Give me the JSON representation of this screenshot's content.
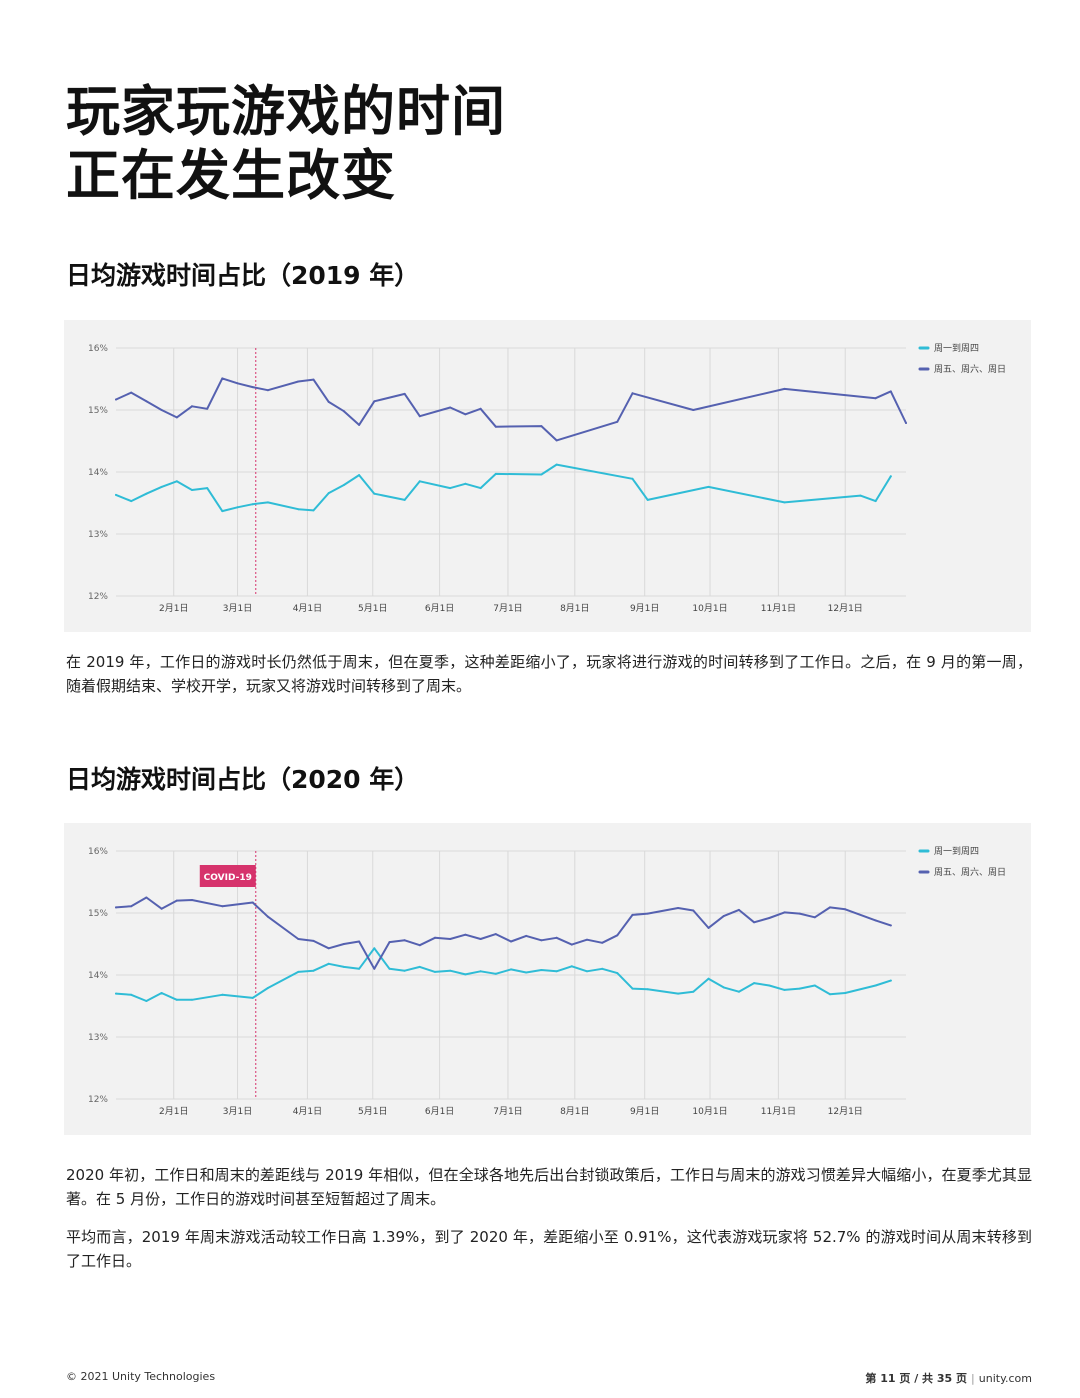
{
  "page": {
    "title_line1": "玩家玩游戏的时间",
    "title_line2": "正在发生改变",
    "section1_title": "日均游戏时间占比（2019 年）",
    "section1_text": "在 2019 年，工作日的游戏时长仍然低于周末，但在夏季，这种差距缩小了，玩家将进行游戏的时间转移到了工作日。之后，在 9 月的第一周，随着假期结束、学校开学，玩家又将游戏时间转移到了周末。",
    "section2_title": "日均游戏时间占比（2020 年）",
    "section2_text1": "2020 年初，工作日和周末的差距线与 2019 年相似，但在全球各地先后出台封锁政策后，工作日与周末的游戏习惯差异大幅缩小，在夏季尤其显著。在 5 月份，工作日的游戏时间甚至短暂超过了周末。",
    "section2_text2": "平均而言，2019 年周末游戏活动较工作日高 1.39%，到了 2020 年，差距缩小至 0.91%，这代表游戏玩家将 52.7% 的游戏时间从周末转移到了工作日。"
  },
  "footer": {
    "copyright": "© 2021 Unity Technologies",
    "page_number": "第 11 页 / 共 35 页",
    "site": "unity.com"
  },
  "colors": {
    "weekday": "#2fbcd6",
    "weekend": "#5561b0",
    "marker": "#d6336c",
    "background": "#f2f2f2",
    "grid": "#d9d9d9"
  },
  "chart_data": [
    {
      "type": "line",
      "title": "日均游戏时间占比（2019 年）",
      "xlabel": "",
      "ylabel": "",
      "x_unit": "week_index",
      "x_range": [
        0,
        52
      ],
      "ylim": [
        12,
        16
      ],
      "yticks": [
        "12%",
        "13%",
        "14%",
        "15%",
        "16%"
      ],
      "yticks_values": [
        12,
        13,
        14,
        15,
        16
      ],
      "month_ticks": [
        {
          "label": "2月1日",
          "x": 3.8
        },
        {
          "label": "3月1日",
          "x": 8.0
        },
        {
          "label": "4月1日",
          "x": 12.6
        },
        {
          "label": "5月1日",
          "x": 16.9
        },
        {
          "label": "6月1日",
          "x": 21.3
        },
        {
          "label": "7月1日",
          "x": 25.8
        },
        {
          "label": "8月1日",
          "x": 30.2
        },
        {
          "label": "9月1日",
          "x": 34.8
        },
        {
          "label": "10月1日",
          "x": 39.1
        },
        {
          "label": "11月1日",
          "x": 43.6
        },
        {
          "label": "12月1日",
          "x": 48.0
        }
      ],
      "grid": true,
      "legend_position": "top-right",
      "marker_line": {
        "x": 9.2,
        "label": ""
      },
      "series": [
        {
          "name": "周一到周四",
          "color": "#2fbcd6",
          "points": [
            [
              0,
              13.63
            ],
            [
              1,
              13.53
            ],
            [
              2,
              13.65
            ],
            [
              3,
              13.76
            ],
            [
              4,
              13.85
            ],
            [
              5,
              13.71
            ],
            [
              6,
              13.74
            ],
            [
              7,
              13.37
            ],
            [
              8,
              13.43
            ],
            [
              9,
              13.48
            ],
            [
              10,
              13.51
            ],
            [
              12,
              13.4
            ],
            [
              13,
              13.38
            ],
            [
              14,
              13.66
            ],
            [
              15,
              13.79
            ],
            [
              16,
              13.95
            ],
            [
              17,
              13.65
            ],
            [
              19,
              13.55
            ],
            [
              20,
              13.85
            ],
            [
              22,
              13.74
            ],
            [
              23,
              13.81
            ],
            [
              24,
              13.74
            ],
            [
              25,
              13.97
            ],
            [
              28,
              13.96
            ],
            [
              29,
              14.12
            ],
            [
              34,
              13.89
            ],
            [
              35,
              13.55
            ],
            [
              39,
              13.76
            ],
            [
              44,
              13.51
            ],
            [
              49,
              13.62
            ],
            [
              50,
              13.53
            ],
            [
              51,
              13.93
            ]
          ]
        },
        {
          "name": "周五、周六、周日",
          "color": "#5561b0",
          "points": [
            [
              0,
              15.17
            ],
            [
              1,
              15.28
            ],
            [
              2,
              15.14
            ],
            [
              3,
              15.0
            ],
            [
              4,
              14.88
            ],
            [
              5,
              15.06
            ],
            [
              6,
              15.02
            ],
            [
              7,
              15.51
            ],
            [
              8,
              15.43
            ],
            [
              9,
              15.37
            ],
            [
              10,
              15.32
            ],
            [
              12,
              15.46
            ],
            [
              13,
              15.49
            ],
            [
              14,
              15.13
            ],
            [
              15,
              14.98
            ],
            [
              16,
              14.76
            ],
            [
              17,
              15.14
            ],
            [
              19,
              15.26
            ],
            [
              20,
              14.9
            ],
            [
              22,
              15.04
            ],
            [
              23,
              14.93
            ],
            [
              24,
              15.02
            ],
            [
              25,
              14.73
            ],
            [
              28,
              14.74
            ],
            [
              29,
              14.51
            ],
            [
              33,
              14.81
            ],
            [
              34,
              15.27
            ],
            [
              38,
              15.0
            ],
            [
              44,
              15.34
            ],
            [
              50,
              15.19
            ],
            [
              51,
              15.3
            ],
            [
              52,
              14.79
            ]
          ]
        }
      ]
    },
    {
      "type": "line",
      "title": "日均游戏时间占比（2020 年）",
      "xlabel": "",
      "ylabel": "",
      "x_unit": "week_index",
      "x_range": [
        0,
        52
      ],
      "ylim": [
        12,
        16
      ],
      "yticks": [
        "12%",
        "13%",
        "14%",
        "15%",
        "16%"
      ],
      "yticks_values": [
        12,
        13,
        14,
        15,
        16
      ],
      "month_ticks": [
        {
          "label": "2月1日",
          "x": 3.8
        },
        {
          "label": "3月1日",
          "x": 8.0
        },
        {
          "label": "4月1日",
          "x": 12.6
        },
        {
          "label": "5月1日",
          "x": 16.9
        },
        {
          "label": "6月1日",
          "x": 21.3
        },
        {
          "label": "7月1日",
          "x": 25.8
        },
        {
          "label": "8月1日",
          "x": 30.2
        },
        {
          "label": "9月1日",
          "x": 34.8
        },
        {
          "label": "10月1日",
          "x": 39.1
        },
        {
          "label": "11月1日",
          "x": 43.6
        },
        {
          "label": "12月1日",
          "x": 48.0
        }
      ],
      "grid": true,
      "legend_position": "top-right",
      "marker_line": {
        "x": 9.2,
        "label": "COVID-19"
      },
      "series": [
        {
          "name": "周一到周四",
          "color": "#2fbcd6",
          "points": [
            [
              0,
              13.7
            ],
            [
              1,
              13.68
            ],
            [
              2,
              13.58
            ],
            [
              3,
              13.71
            ],
            [
              4,
              13.6
            ],
            [
              5,
              13.6
            ],
            [
              7,
              13.68
            ],
            [
              9,
              13.63
            ],
            [
              10,
              13.79
            ],
            [
              12,
              14.05
            ],
            [
              13,
              14.07
            ],
            [
              14,
              14.18
            ],
            [
              15,
              14.13
            ],
            [
              16,
              14.1
            ],
            [
              17,
              14.43
            ],
            [
              18,
              14.1
            ],
            [
              19,
              14.07
            ],
            [
              20,
              14.13
            ],
            [
              21,
              14.05
            ],
            [
              22,
              14.07
            ],
            [
              23,
              14.01
            ],
            [
              24,
              14.06
            ],
            [
              25,
              14.02
            ],
            [
              26,
              14.09
            ],
            [
              27,
              14.04
            ],
            [
              28,
              14.08
            ],
            [
              29,
              14.06
            ],
            [
              30,
              14.14
            ],
            [
              31,
              14.06
            ],
            [
              32,
              14.1
            ],
            [
              33,
              14.03
            ],
            [
              34,
              13.78
            ],
            [
              35,
              13.77
            ],
            [
              37,
              13.7
            ],
            [
              38,
              13.73
            ],
            [
              39,
              13.94
            ],
            [
              40,
              13.8
            ],
            [
              41,
              13.73
            ],
            [
              42,
              13.87
            ],
            [
              43,
              13.83
            ],
            [
              44,
              13.76
            ],
            [
              45,
              13.78
            ],
            [
              46,
              13.83
            ],
            [
              47,
              13.69
            ],
            [
              48,
              13.71
            ],
            [
              50,
              13.83
            ],
            [
              51,
              13.91
            ]
          ]
        },
        {
          "name": "周五、周六、周日",
          "color": "#5561b0",
          "points": [
            [
              0,
              15.09
            ],
            [
              1,
              15.11
            ],
            [
              2,
              15.25
            ],
            [
              3,
              15.07
            ],
            [
              4,
              15.2
            ],
            [
              5,
              15.21
            ],
            [
              7,
              15.11
            ],
            [
              9,
              15.17
            ],
            [
              10,
              14.94
            ],
            [
              12,
              14.58
            ],
            [
              13,
              14.55
            ],
            [
              14,
              14.43
            ],
            [
              15,
              14.5
            ],
            [
              16,
              14.54
            ],
            [
              17,
              14.1
            ],
            [
              18,
              14.53
            ],
            [
              19,
              14.56
            ],
            [
              20,
              14.48
            ],
            [
              21,
              14.6
            ],
            [
              22,
              14.58
            ],
            [
              23,
              14.65
            ],
            [
              24,
              14.58
            ],
            [
              25,
              14.66
            ],
            [
              26,
              14.54
            ],
            [
              27,
              14.63
            ],
            [
              28,
              14.56
            ],
            [
              29,
              14.6
            ],
            [
              30,
              14.49
            ],
            [
              31,
              14.57
            ],
            [
              32,
              14.52
            ],
            [
              33,
              14.64
            ],
            [
              34,
              14.97
            ],
            [
              35,
              14.99
            ],
            [
              37,
              15.08
            ],
            [
              38,
              15.04
            ],
            [
              39,
              14.76
            ],
            [
              40,
              14.95
            ],
            [
              41,
              15.05
            ],
            [
              42,
              14.85
            ],
            [
              43,
              14.92
            ],
            [
              44,
              15.01
            ],
            [
              45,
              14.99
            ],
            [
              46,
              14.93
            ],
            [
              47,
              15.09
            ],
            [
              48,
              15.06
            ],
            [
              50,
              14.88
            ],
            [
              51,
              14.8
            ]
          ]
        }
      ]
    }
  ]
}
